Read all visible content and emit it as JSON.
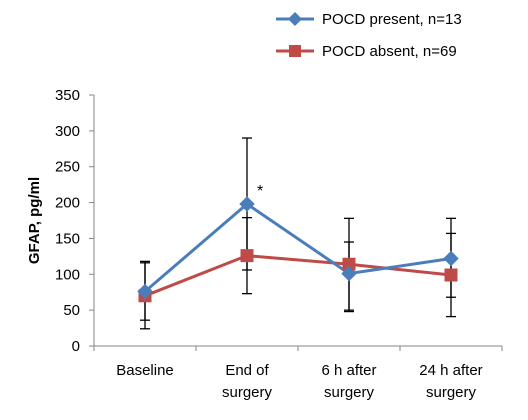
{
  "chart_data": {
    "type": "line",
    "categories": [
      [
        "Baseline"
      ],
      [
        "End of",
        "surgery"
      ],
      [
        "6 h after",
        "surgery"
      ],
      [
        "24 h after",
        "surgery"
      ]
    ],
    "ylabel": "GFAP, pg/ml",
    "xlabel": "",
    "ylim": [
      0,
      350
    ],
    "yticks": [
      0,
      50,
      100,
      150,
      200,
      250,
      300,
      350
    ],
    "grid": false,
    "legend_position": "top-right",
    "series": [
      {
        "name": "POCD present, n=13",
        "color": "#4A7EBB",
        "marker": "diamond",
        "values": [
          76,
          198,
          101,
          122
        ],
        "error_low": [
          36,
          106,
          50,
          68
        ],
        "error_high": [
          116,
          290,
          145,
          157
        ]
      },
      {
        "name": "POCD absent, n=69",
        "color": "#BE4B48",
        "marker": "square",
        "values": [
          70,
          126,
          114,
          99
        ],
        "error_low": [
          24,
          73,
          48,
          41
        ],
        "error_high": [
          118,
          179,
          178,
          178
        ]
      }
    ],
    "annotations": [
      {
        "text": "*",
        "category_index": 1,
        "value": 198
      }
    ]
  }
}
